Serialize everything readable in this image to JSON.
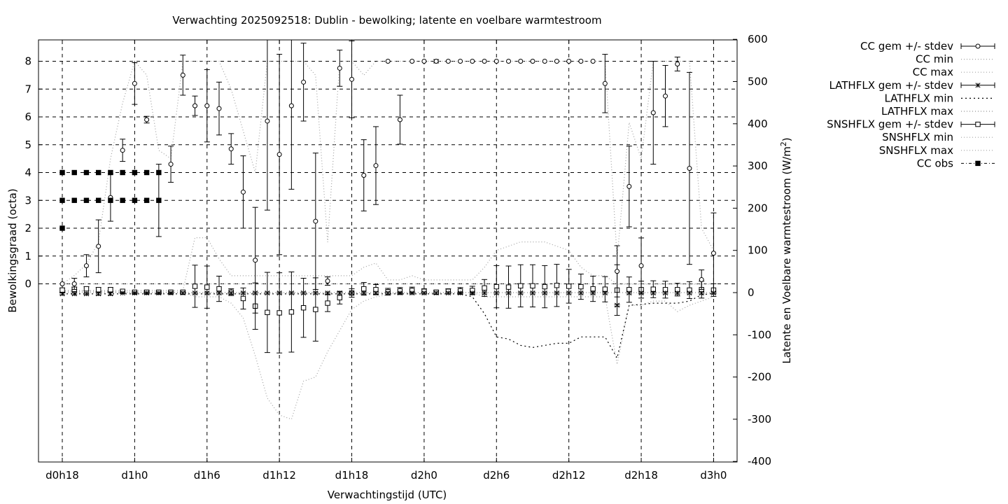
{
  "chart_data": {
    "type": "line",
    "title": "Verwachting 2025092518: Dublin - bewolking; latente en voelbare warmtestroom",
    "xlabel": "Verwachtingstijd (UTC)",
    "ylabel": "Bewolkingsgraad (octa)",
    "y2label": "Latente en Voelbare warmtestroom (W/m",
    "y2label_sup": "2",
    "y2label_end": ")",
    "xlim": [
      -2,
      55
    ],
    "ylim": [
      -6.3,
      8.8
    ],
    "y2lim": [
      -400,
      600
    ],
    "grid": true,
    "legend_position": "top-right, outside plot",
    "x_ticks": [
      {
        "x": 0,
        "label": "d0h18"
      },
      {
        "x": 6,
        "label": "d1h0"
      },
      {
        "x": 12,
        "label": "d1h6"
      },
      {
        "x": 18,
        "label": "d1h12"
      },
      {
        "x": 24,
        "label": "d1h18"
      },
      {
        "x": 30,
        "label": "d2h0"
      },
      {
        "x": 36,
        "label": "d2h6"
      },
      {
        "x": 42,
        "label": "d2h12"
      },
      {
        "x": 48,
        "label": "d2h18"
      },
      {
        "x": 54,
        "label": "d3h0"
      }
    ],
    "y_ticks": [
      {
        "v": 0,
        "label": "0"
      },
      {
        "v": 1,
        "label": "1"
      },
      {
        "v": 2,
        "label": "2"
      },
      {
        "v": 3,
        "label": "3"
      },
      {
        "v": 4,
        "label": "4"
      },
      {
        "v": 5,
        "label": "5"
      },
      {
        "v": 6,
        "label": "6"
      },
      {
        "v": 7,
        "label": "7"
      },
      {
        "v": 8,
        "label": "8"
      }
    ],
    "y2_ticks": [
      {
        "v": 600,
        "label": "600"
      },
      {
        "v": 500,
        "label": "500"
      },
      {
        "v": 400,
        "label": "400"
      },
      {
        "v": 300,
        "label": "300"
      },
      {
        "v": 200,
        "label": "200"
      },
      {
        "v": 100,
        "label": "100"
      },
      {
        "v": 0,
        "label": "0"
      },
      {
        "v": -100,
        "label": "-100"
      },
      {
        "v": -200,
        "label": "-200"
      },
      {
        "v": -300,
        "label": "-300"
      },
      {
        "v": -400,
        "label": "-400"
      }
    ],
    "x": [
      0,
      1,
      2,
      3,
      4,
      5,
      6,
      7,
      8,
      9,
      10,
      11,
      12,
      13,
      14,
      15,
      16,
      17,
      18,
      19,
      20,
      21,
      22,
      23,
      24,
      25,
      26,
      27,
      28,
      29,
      30,
      31,
      32,
      33,
      34,
      35,
      36,
      37,
      38,
      39,
      40,
      41,
      42,
      43,
      44,
      45,
      46,
      47,
      48,
      49,
      50,
      51,
      52,
      53,
      54
    ],
    "series": [
      {
        "name": "CC gem +/- stdev",
        "axis": "y1",
        "marker": "circle",
        "values": [
          0.0,
          0.0,
          0.65,
          1.35,
          3.1,
          4.8,
          7.2,
          5.9,
          3.0,
          4.3,
          7.5,
          6.4,
          6.4,
          6.3,
          4.85,
          3.3,
          0.85,
          5.85,
          4.65,
          6.4,
          7.25,
          2.25,
          0.1,
          7.75,
          7.35,
          3.9,
          4.25,
          8.0,
          5.9,
          8.0,
          8.0,
          8.0,
          8.0,
          8.0,
          8.0,
          8.0,
          8.0,
          8.0,
          8.0,
          8.0,
          8.0,
          8.0,
          8.0,
          8.0,
          8.0,
          7.2,
          0.45,
          3.5,
          0.65,
          6.15,
          6.75,
          7.9,
          4.15,
          0.15,
          1.1
        ],
        "stdev": [
          0.0,
          0.2,
          0.4,
          0.95,
          0.85,
          0.4,
          0.75,
          0.12,
          1.3,
          0.65,
          0.72,
          0.35,
          1.3,
          0.95,
          0.55,
          1.3,
          1.9,
          3.2,
          3.6,
          3.0,
          1.4,
          2.45,
          0.15,
          0.65,
          1.38,
          1.28,
          1.4,
          0.0,
          0.88,
          0.0,
          0.0,
          0.06,
          0.0,
          0.0,
          0.0,
          0.0,
          0.0,
          0.0,
          0.0,
          0.0,
          0.0,
          0.0,
          0.0,
          0.0,
          0.0,
          1.05,
          0.92,
          1.45,
          1.0,
          1.85,
          1.1,
          0.25,
          3.45,
          0.35,
          1.45
        ]
      },
      {
        "name": "CC min",
        "axis": "y1",
        "values": [
          0,
          0,
          0,
          0,
          0,
          0,
          0,
          0,
          0,
          0,
          0,
          0,
          0,
          0,
          0,
          0,
          0,
          0,
          0,
          0,
          0,
          0,
          0,
          0,
          0,
          0,
          0,
          0,
          0,
          0,
          0,
          0,
          0,
          0,
          0,
          0,
          0,
          0,
          0,
          0,
          0,
          0,
          0,
          0,
          0,
          0,
          0,
          0,
          0,
          0,
          0,
          0,
          0,
          0,
          0
        ]
      },
      {
        "name": "CC max",
        "axis": "y1",
        "values": [
          0,
          0.3,
          0.7,
          1.5,
          4.5,
          6.5,
          8,
          7.5,
          4.8,
          4.5,
          8,
          8,
          8,
          8,
          7,
          5.5,
          4,
          8,
          8,
          8,
          8,
          7.5,
          1.5,
          8,
          8,
          7.5,
          8,
          8,
          8,
          8,
          8,
          8,
          8,
          8,
          8,
          8,
          8,
          8,
          8,
          8,
          8,
          8,
          8,
          8,
          8,
          8,
          0.9,
          5.8,
          4.5,
          8,
          8,
          8,
          8,
          2,
          1.2
        ]
      },
      {
        "name": "LATHFLX gem +/- stdev",
        "axis": "y2",
        "marker": "asterisk",
        "values": [
          -3,
          -3,
          -3,
          -3,
          -3,
          -1,
          -1,
          -1,
          -1,
          -1,
          -1,
          -1,
          -1,
          -1,
          -1,
          -1,
          -1,
          -1,
          -1,
          -1,
          -1,
          -1,
          -1,
          -1,
          -1,
          -1,
          -1,
          -1,
          -1,
          -1,
          -1,
          -1,
          -1,
          -1,
          -1,
          -1,
          -1,
          -1,
          -1,
          -1,
          -1,
          -1,
          -1,
          -1,
          -1,
          -1,
          -30,
          -1,
          -1,
          -1,
          -1,
          -1,
          -1,
          -1,
          -1
        ],
        "stdev": [
          2,
          2,
          2,
          3,
          3,
          1,
          1,
          1,
          1,
          1,
          2,
          2,
          2,
          2,
          2,
          2,
          2,
          2,
          2,
          2,
          2,
          2,
          2,
          2,
          2,
          2,
          2,
          2,
          2,
          2,
          2,
          2,
          2,
          2,
          2,
          2,
          2,
          2,
          2,
          2,
          2,
          2,
          2,
          2,
          2,
          2,
          2,
          2,
          2,
          2,
          2,
          2,
          2,
          2,
          2
        ]
      },
      {
        "name": "LATHFLX min",
        "axis": "y2",
        "values": [
          -3,
          -3,
          -3,
          -3,
          -3,
          -3,
          -3,
          -3,
          -3,
          -3,
          -3,
          -3,
          -3,
          -3,
          -3,
          -3,
          -3,
          -3,
          -3,
          -3,
          -3,
          -3,
          -3,
          -3,
          -3,
          -3,
          -3,
          -3,
          -3,
          -3,
          -3,
          -3,
          -3,
          -3,
          -10,
          -50,
          -105,
          -110,
          -125,
          -130,
          -125,
          -120,
          -120,
          -105,
          -105,
          -105,
          -155,
          -30,
          -28,
          -25,
          -25,
          -25,
          -20,
          -5,
          -2
        ]
      },
      {
        "name": "LATHFLX max",
        "axis": "y2",
        "values": [
          0,
          0,
          0,
          0,
          0,
          0,
          0,
          0,
          0,
          0,
          0,
          0,
          0,
          0,
          0,
          0,
          0,
          0,
          0,
          0,
          0,
          0,
          0,
          0,
          0,
          0,
          0,
          0,
          0,
          0,
          0,
          0,
          0,
          0,
          0,
          0,
          0,
          0,
          0,
          0,
          0,
          0,
          0,
          0,
          0,
          0,
          0,
          0,
          0,
          0,
          0,
          0,
          0,
          0,
          0
        ]
      },
      {
        "name": "SNSHFLX gem +/- stdev",
        "axis": "y2",
        "marker": "square",
        "values": [
          6,
          8,
          9,
          7,
          7,
          3,
          1,
          1,
          1,
          1,
          1,
          15,
          13,
          9,
          1,
          -14,
          -32,
          -47,
          -48,
          -46,
          -36,
          -40,
          -25,
          -12,
          -1,
          9,
          7,
          2,
          4,
          5,
          3,
          1,
          3,
          4,
          5,
          11,
          14,
          13,
          16,
          16,
          14,
          17,
          15,
          14,
          9,
          8,
          6,
          7,
          7,
          8,
          7,
          7,
          6,
          7,
          6
        ],
        "stdev": [
          5,
          5,
          5,
          5,
          5,
          2,
          2,
          2,
          2,
          2,
          2,
          50,
          50,
          30,
          8,
          25,
          55,
          95,
          95,
          95,
          70,
          75,
          20,
          15,
          10,
          15,
          12,
          8,
          8,
          8,
          6,
          4,
          6,
          8,
          10,
          20,
          50,
          50,
          50,
          50,
          50,
          50,
          40,
          30,
          30,
          30,
          60,
          30,
          20,
          20,
          20,
          15,
          20,
          20,
          15
        ]
      },
      {
        "name": "SNSHFLX min",
        "axis": "y2",
        "values": [
          3,
          3,
          3,
          3,
          3,
          1,
          1,
          1,
          1,
          1,
          1,
          -10,
          -10,
          -10,
          -25,
          -60,
          -150,
          -250,
          -290,
          -300,
          -210,
          -200,
          -140,
          -90,
          -40,
          -20,
          -10,
          -5,
          0,
          0,
          0,
          0,
          0,
          0,
          0,
          -10,
          -10,
          -10,
          -10,
          -10,
          -10,
          -10,
          -10,
          -10,
          -10,
          -10,
          -170,
          -30,
          -30,
          -20,
          -20,
          -45,
          -30,
          -20,
          -10
        ]
      },
      {
        "name": "SNSHFLX max",
        "axis": "y2",
        "values": [
          5,
          5,
          5,
          5,
          5,
          5,
          5,
          5,
          5,
          5,
          5,
          130,
          130,
          80,
          40,
          40,
          40,
          40,
          40,
          40,
          40,
          40,
          40,
          40,
          40,
          60,
          70,
          30,
          30,
          40,
          30,
          30,
          30,
          30,
          30,
          60,
          100,
          110,
          120,
          120,
          120,
          110,
          100,
          60,
          40,
          40,
          20,
          20,
          20,
          20,
          20,
          20,
          20,
          20,
          20
        ]
      },
      {
        "name": "CC obs",
        "axis": "y1",
        "marker": "filled-square",
        "points": [
          [
            0,
            2
          ],
          [
            0,
            3
          ],
          [
            0,
            4
          ],
          [
            1,
            3
          ],
          [
            1,
            4
          ],
          [
            2,
            3
          ],
          [
            2,
            4
          ],
          [
            3,
            3
          ],
          [
            3,
            4
          ],
          [
            4,
            3
          ],
          [
            4,
            4
          ],
          [
            5,
            3
          ],
          [
            5,
            4
          ],
          [
            6,
            3
          ],
          [
            6,
            4
          ],
          [
            7,
            3
          ],
          [
            7,
            4
          ],
          [
            8,
            3
          ],
          [
            8,
            4
          ]
        ]
      }
    ]
  }
}
